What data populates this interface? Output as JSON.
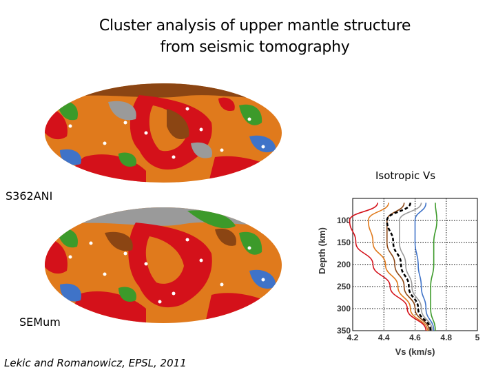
{
  "title_line1": "Cluster analysis of upper mantle structure",
  "title_line2": "from  seismic tomography",
  "map_top_label": "S362ANI",
  "map_bottom_label": "SEMum",
  "chart_heading": "Isotropic Vs",
  "credit": "Lekic and Romanowicz, EPSL, 2011",
  "colors": {
    "brown": "#8B4513",
    "red": "#D4111A",
    "orange": "#E07A1C",
    "green": "#3C9A2A",
    "blue": "#3F73C8",
    "gray": "#9A9A9A"
  },
  "chart_data": {
    "type": "line",
    "xlabel": "Vs (km/s)",
    "ylabel": "Depth (km)",
    "xlim": [
      4.2,
      5.0
    ],
    "ylim": [
      350,
      50
    ],
    "xticks": [
      "4.2",
      "4.4",
      "4.6",
      "4.8",
      "5"
    ],
    "yticks": [
      "100",
      "150",
      "200",
      "250",
      "300",
      "350"
    ],
    "grid": true,
    "series": [
      {
        "color": "#D4111A",
        "depth": [
          60,
          100,
          150,
          200,
          250,
          300,
          350
        ],
        "vs": [
          4.36,
          4.18,
          4.22,
          4.33,
          4.44,
          4.55,
          4.67
        ]
      },
      {
        "color": "#E07A1C",
        "depth": [
          60,
          100,
          150,
          200,
          250,
          300,
          350
        ],
        "vs": [
          4.43,
          4.3,
          4.33,
          4.41,
          4.49,
          4.57,
          4.68
        ]
      },
      {
        "color": "#8B4513",
        "depth": [
          60,
          100,
          150,
          200,
          250,
          300,
          350
        ],
        "vs": [
          4.53,
          4.42,
          4.42,
          4.47,
          4.53,
          4.6,
          4.69
        ]
      },
      {
        "color": "#000000",
        "dashed": true,
        "depth": [
          60,
          100,
          150,
          200,
          250,
          300,
          350
        ],
        "vs": [
          4.57,
          4.42,
          4.46,
          4.51,
          4.56,
          4.62,
          4.7
        ]
      },
      {
        "color": "#9A9A9A",
        "depth": [
          60,
          100,
          150,
          200,
          250,
          300,
          350
        ],
        "vs": [
          4.64,
          4.5,
          4.5,
          4.54,
          4.58,
          4.64,
          4.71
        ]
      },
      {
        "color": "#3F73C8",
        "depth": [
          60,
          100,
          150,
          200,
          250,
          300,
          350
        ],
        "vs": [
          4.67,
          4.6,
          4.6,
          4.62,
          4.64,
          4.67,
          4.72
        ]
      },
      {
        "color": "#3C9A2A",
        "depth": [
          60,
          100,
          150,
          200,
          250,
          300,
          350
        ],
        "vs": [
          4.73,
          4.74,
          4.72,
          4.72,
          4.7,
          4.7,
          4.73
        ]
      }
    ]
  }
}
